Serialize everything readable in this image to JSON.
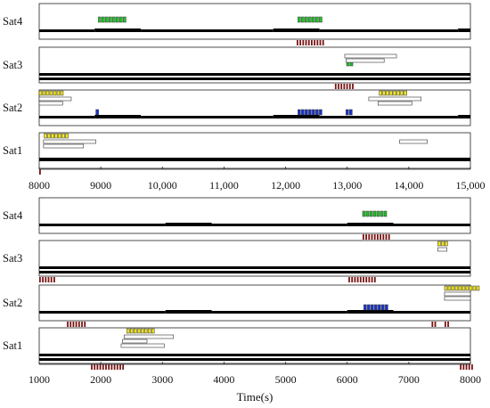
{
  "x_axis_label": "Time(s)",
  "colors": {
    "bar": "#000000",
    "green": "#22c22a",
    "blue": "#1733c9",
    "yellow": "#f1e51c",
    "red": "#7a1414",
    "white_bar": "#ffffff"
  },
  "chart_data": [
    {
      "type": "timeline",
      "xlim": [
        8000,
        15000
      ],
      "xticks": [
        8000,
        9000,
        10000,
        11000,
        12000,
        13000,
        14000,
        15000
      ],
      "xtick_labels": [
        "8000",
        "9000",
        "10,000",
        "11,000",
        "12,000",
        "13,000",
        "14,000",
        "15,000"
      ],
      "rows": [
        {
          "name": "Sat4",
          "black": [
            [
              8000,
              8900,
              1
            ],
            [
              8900,
              9650,
              2
            ],
            [
              9650,
              11800,
              1
            ],
            [
              11800,
              12550,
              2
            ],
            [
              12550,
              14800,
              1
            ],
            [
              14800,
              15000,
              2
            ]
          ],
          "green": [
            [
              8960,
              8,
              1
            ],
            [
              12200,
              7,
              6
            ]
          ],
          "red": [
            [
              12180,
              10
            ]
          ]
        },
        {
          "name": "Sat3",
          "black": [
            [
              8000,
              15000,
              1
            ]
          ],
          "yellow": [
            [
              12970,
              9,
              11
            ]
          ],
          "white": [
            [
              12960,
              13800,
              1
            ],
            [
              12980,
              13600,
              2
            ]
          ],
          "green": [
            [
              12990,
              2,
              1
            ]
          ],
          "red": [
            [
              12800,
              7
            ]
          ]
        },
        {
          "name": "Sat2",
          "black": [
            [
              8000,
              8900,
              1
            ],
            [
              8900,
              9650,
              2
            ],
            [
              9650,
              11800,
              1
            ],
            [
              11800,
              12550,
              2
            ],
            [
              12550,
              14800,
              1
            ],
            [
              14800,
              15000,
              2
            ]
          ],
          "yellow": [
            [
              8000,
              7,
              0
            ],
            [
              13520,
              8,
              0
            ]
          ],
          "white": [
            [
              8000,
              8520,
              1
            ],
            [
              8000,
              8380,
              2
            ],
            [
              13350,
              14200,
              1
            ],
            [
              13500,
              14050,
              2
            ]
          ],
          "blue": [
            [
              8920,
              1,
              1
            ],
            [
              12200,
              7,
              1
            ],
            [
              12980,
              2,
              1
            ]
          ]
        },
        {
          "name": "Sat1",
          "black": [
            [
              8000,
              15000,
              2
            ]
          ],
          "yellow": [
            [
              8080,
              7,
              0
            ]
          ],
          "white": [
            [
              8070,
              8920,
              1
            ],
            [
              8070,
              8720,
              2
            ],
            [
              13850,
              14300,
              1
            ]
          ],
          "red": [
            [
              8000,
              1
            ]
          ]
        }
      ]
    },
    {
      "type": "timeline",
      "xlim": [
        1000,
        8000
      ],
      "xticks": [
        1000,
        2000,
        3000,
        4000,
        5000,
        6000,
        7000,
        8000
      ],
      "xtick_labels": [
        "1000",
        "2000",
        "3000",
        "4000",
        "5000",
        "6000",
        "7000",
        "8000"
      ],
      "rows": [
        {
          "name": "Sat4",
          "black": [
            [
              1000,
              3050,
              1
            ],
            [
              3050,
              3800,
              2
            ],
            [
              3800,
              6000,
              1
            ],
            [
              6000,
              6750,
              2
            ],
            [
              6750,
              8000,
              1
            ]
          ],
          "green": [
            [
              6250,
              7,
              1
            ]
          ],
          "red": [
            [
              6250,
              10
            ]
          ]
        },
        {
          "name": "Sat3",
          "black": [
            [
              1000,
              8000,
              1
            ]
          ],
          "yellow": [
            [
              7470,
              3,
              0
            ]
          ],
          "white": [
            [
              7470,
              7620,
              1
            ]
          ],
          "red": [
            [
              1000,
              6
            ],
            [
              6020,
              10
            ]
          ]
        },
        {
          "name": "Sat2",
          "black": [
            [
              1000,
              3050,
              1
            ],
            [
              3050,
              3800,
              2
            ],
            [
              3800,
              6000,
              1
            ],
            [
              6000,
              6750,
              2
            ],
            [
              6750,
              8000,
              1
            ]
          ],
          "yellow": [
            [
              7580,
              10,
              0
            ]
          ],
          "white": [
            [
              7580,
              8000,
              1
            ],
            [
              7580,
              8000,
              2
            ]
          ],
          "blue": [
            [
              6270,
              7,
              1
            ]
          ],
          "red": [
            [
              1450,
              7
            ],
            [
              7370,
              2
            ],
            [
              7580,
              2
            ]
          ]
        },
        {
          "name": "Sat1",
          "black": [
            [
              1000,
              8000,
              1
            ]
          ],
          "yellow": [
            [
              2420,
              8,
              0
            ]
          ],
          "white": [
            [
              2380,
              3180,
              1
            ],
            [
              2350,
              2750,
              2
            ],
            [
              2330,
              3030,
              3
            ]
          ],
          "red": [
            [
              1840,
              12
            ],
            [
              7830,
              5
            ]
          ]
        }
      ]
    }
  ]
}
